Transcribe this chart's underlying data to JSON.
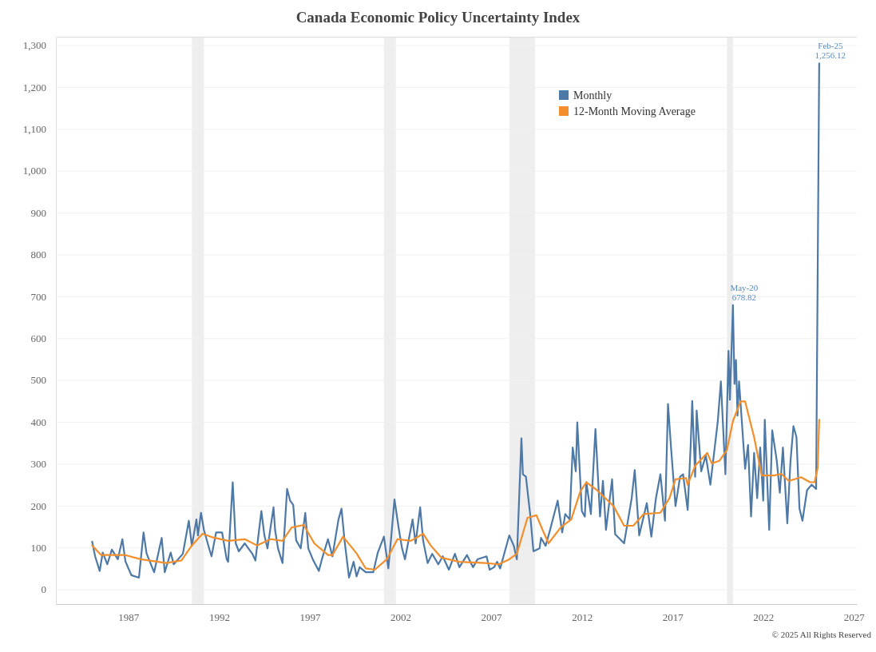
{
  "chart_data": {
    "type": "line",
    "title": "Canada Economic Policy Uncertainty Index",
    "annotations": [
      {
        "text": "May-20\n678.82",
        "x": "2020-05",
        "y": 678.82
      },
      {
        "text": "Feb-25\n1,256.12",
        "x": "2025-02",
        "y": 1256.12
      },
      "© 2025 All Rights Reserved"
    ],
    "series": [
      {
        "name": "Monthly",
        "color": "#4e79a7",
        "x": [
          "1985-01",
          "1985-03",
          "1985-06",
          "1985-08",
          "1985-11",
          "1986-02",
          "1986-06",
          "1986-09",
          "1986-11",
          "1987-03",
          "1987-08",
          "1987-11",
          "1988-01",
          "1988-06",
          "1988-11",
          "1989-01",
          "1989-05",
          "1989-07",
          "1990-01",
          "1990-05",
          "1990-07",
          "1990-10",
          "1990-11",
          "1991-01",
          "1991-03",
          "1991-07",
          "1991-08",
          "1991-11",
          "1992-03",
          "1992-06",
          "1992-07",
          "1992-10",
          "1992-12",
          "1993-02",
          "1993-06",
          "1993-11",
          "1994-01",
          "1994-05",
          "1994-07",
          "1994-09",
          "1995-01",
          "1995-02",
          "1995-04",
          "1995-07",
          "1995-10",
          "1995-12",
          "1996-02",
          "1996-04",
          "1996-07",
          "1996-10",
          "1996-12",
          "1997-03",
          "1997-07",
          "1997-09",
          "1998-01",
          "1998-04",
          "1998-08",
          "1998-10",
          "1998-12",
          "1999-03",
          "1999-06",
          "1999-08",
          "1999-10",
          "2000-02",
          "2000-07",
          "2000-10",
          "2001-02",
          "2001-05",
          "2001-07",
          "2001-09",
          "2001-12",
          "2002-02",
          "2002-04",
          "2002-09",
          "2002-11",
          "2003-02",
          "2003-04",
          "2003-07",
          "2003-10",
          "2004-02",
          "2004-05",
          "2004-09",
          "2005-01",
          "2005-04",
          "2005-09",
          "2006-01",
          "2006-04",
          "2006-10",
          "2006-12",
          "2007-03",
          "2007-05",
          "2007-07",
          "2008-01",
          "2008-04",
          "2008-06",
          "2008-09",
          "2008-10",
          "2008-12",
          "2009-03",
          "2009-05",
          "2009-09",
          "2009-10",
          "2010-01",
          "2010-04",
          "2010-09",
          "2010-12",
          "2011-02",
          "2011-05",
          "2011-07",
          "2011-09",
          "2011-10",
          "2012-01",
          "2012-03",
          "2012-04",
          "2012-07",
          "2012-10",
          "2013-01",
          "2013-03",
          "2013-05",
          "2013-09",
          "2013-11",
          "2014-05",
          "2014-10",
          "2014-12",
          "2015-03",
          "2015-08",
          "2015-11",
          "2016-02",
          "2016-05",
          "2016-08",
          "2016-10",
          "2016-12",
          "2017-03",
          "2017-06",
          "2017-08",
          "2017-11",
          "2018-01",
          "2018-02",
          "2018-04",
          "2018-05",
          "2018-08",
          "2018-11",
          "2019-02",
          "2019-07",
          "2019-09",
          "2019-12",
          "2020-02",
          "2020-03",
          "2020-05",
          "2020-06",
          "2020-07",
          "2020-08",
          "2020-09",
          "2021-01",
          "2021-03",
          "2021-05",
          "2021-07",
          "2021-09",
          "2021-11",
          "2022-01",
          "2022-02",
          "2022-05",
          "2022-07",
          "2022-10",
          "2022-12",
          "2023-02",
          "2023-05",
          "2023-07",
          "2023-09",
          "2023-11",
          "2024-01",
          "2024-03",
          "2024-06",
          "2024-09",
          "2024-12",
          "2025-02"
        ],
        "values": [
          114,
          79,
          44,
          88,
          60,
          95,
          72,
          120,
          67,
          34,
          28,
          136,
          86,
          41,
          123,
          41,
          88,
          60,
          85,
          164,
          104,
          167,
          129,
          183,
          142,
          91,
          79,
          136,
          136,
          72,
          66,
          256,
          110,
          91,
          110,
          85,
          69,
          187,
          129,
          98,
          196,
          142,
          98,
          63,
          240,
          212,
          202,
          117,
          98,
          183,
          98,
          72,
          44,
          72,
          120,
          79,
          167,
          193,
          117,
          28,
          66,
          31,
          53,
          41,
          41,
          88,
          126,
          50,
          129,
          215,
          142,
          98,
          72,
          167,
          110,
          196,
          117,
          63,
          85,
          60,
          79,
          47,
          85,
          53,
          82,
          53,
          72,
          79,
          47,
          53,
          66,
          50,
          129,
          104,
          72,
          361,
          275,
          269,
          174,
          91,
          98,
          123,
          104,
          142,
          212,
          136,
          180,
          167,
          339,
          282,
          399,
          187,
          174,
          256,
          180,
          383,
          174,
          259,
          142,
          263,
          132,
          110,
          218,
          285,
          129,
          206,
          126,
          218,
          275,
          164,
          443,
          339,
          199,
          269,
          275,
          190,
          345,
          450,
          269,
          427,
          282,
          320,
          250,
          402,
          497,
          275,
          570,
          453,
          678.82,
          491,
          548,
          415,
          497,
          288,
          345,
          174,
          326,
          218,
          339,
          212,
          405,
          142,
          380,
          307,
          231,
          339,
          158,
          301,
          390,
          364,
          193,
          164,
          237,
          250,
          240,
          1256.12
        ]
      },
      {
        "name": "12-Month Moving Average",
        "color": "#f28e2b",
        "x": [
          "1985-01",
          "1985-07",
          "1986-11",
          "1987-09",
          "1989-02",
          "1989-12",
          "1990-07",
          "1991-02",
          "1991-09",
          "1992-07",
          "1993-06",
          "1994-02",
          "1994-11",
          "1995-07",
          "1996-01",
          "1996-09",
          "1997-04",
          "1998-01",
          "1998-04",
          "1998-11",
          "1999-08",
          "2000-02",
          "2000-08",
          "2001-04",
          "2001-11",
          "2002-08",
          "2003-04",
          "2003-09",
          "2004-04",
          "2005-04",
          "2006-09",
          "2007-06",
          "2008-01",
          "2008-06",
          "2009-01",
          "2009-07",
          "2009-11",
          "2010-03",
          "2010-11",
          "2011-06",
          "2011-12",
          "2012-04",
          "2012-11",
          "2013-10",
          "2014-05",
          "2014-11",
          "2015-06",
          "2016-05",
          "2016-11",
          "2017-03",
          "2017-10",
          "2017-11",
          "2018-04",
          "2018-12",
          "2019-03",
          "2019-08",
          "2020-01",
          "2020-05",
          "2020-10",
          "2021-01",
          "2021-07",
          "2021-12",
          "2022-08",
          "2023-01",
          "2023-06",
          "2024-02",
          "2024-08",
          "2024-11",
          "2025-01",
          "2025-02"
        ],
        "values": [
          105,
          82,
          82,
          72,
          63,
          69,
          105,
          133,
          124,
          116,
          120,
          105,
          120,
          116,
          148,
          154,
          110,
          82,
          82,
          126,
          86,
          50,
          47,
          72,
          120,
          116,
          133,
          105,
          76,
          66,
          63,
          60,
          72,
          85,
          171,
          177,
          142,
          110,
          148,
          167,
          234,
          256,
          237,
          199,
          152,
          152,
          180,
          183,
          218,
          263,
          266,
          250,
          295,
          326,
          301,
          307,
          333,
          402,
          449,
          449,
          364,
          272,
          272,
          276,
          259,
          268,
          256,
          256,
          290,
          405
        ]
      }
    ],
    "xlim": [
      "1983-01",
      "2027-03"
    ],
    "xticks": [
      "1987",
      "1992",
      "1997",
      "2002",
      "2007",
      "2012",
      "2017",
      "2022",
      "2027"
    ],
    "ylim": [
      -35,
      1320
    ],
    "yticks": [
      0,
      100,
      200,
      300,
      400,
      500,
      600,
      700,
      800,
      900,
      {
        "value": 1000,
        "label": "1,000"
      },
      {
        "value": 1100,
        "label": "1,100"
      },
      {
        "value": 1200,
        "label": "1,200"
      },
      {
        "value": 1300,
        "label": "1,300"
      }
    ],
    "bands": [
      {
        "axis": "x",
        "from": "1990-07",
        "to": "1991-03",
        "color": "#eeeeee"
      },
      {
        "axis": "x",
        "from": "2001-02",
        "to": "2001-10",
        "color": "#eeeeee"
      },
      {
        "axis": "x",
        "from": "2008-01",
        "to": "2009-06",
        "color": "#eeeeee"
      },
      {
        "axis": "x",
        "from": "2020-01",
        "to": "2020-05",
        "color": "#eeeeee"
      }
    ],
    "grid": "y",
    "legend": "top right",
    "line_style": "solid"
  }
}
